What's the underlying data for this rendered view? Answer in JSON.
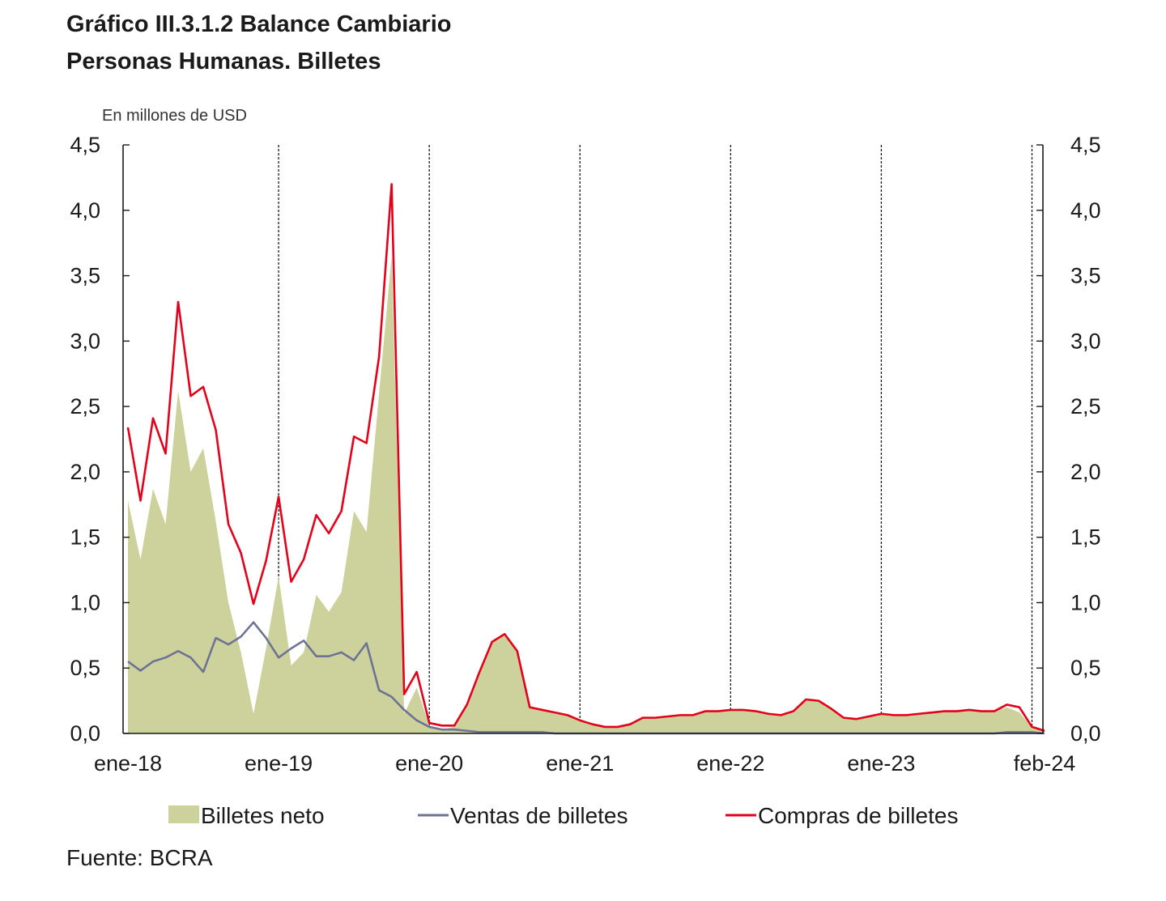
{
  "title_line1": "Gráfico III.3.1.2 Balance Cambiario",
  "title_line2": "Personas Humanas. Billetes",
  "source": "Fuente: BCRA",
  "colors": {
    "neto": "#cdd29c",
    "ventas": "#6e7394",
    "compras": "#e3001b",
    "grid": "#1a1a1a"
  },
  "chart_data": {
    "type": "area",
    "unit_label": "En millones de USD",
    "ylim": [
      0,
      4.5
    ],
    "y_ticks": [
      "0,0",
      "0,5",
      "1,0",
      "1,5",
      "2,0",
      "2,5",
      "3,0",
      "3,5",
      "4,0",
      "4,5"
    ],
    "y_tick_values": [
      0,
      0.5,
      1,
      1.5,
      2,
      2.5,
      3,
      3.5,
      4,
      4.5
    ],
    "x_ticks": [
      {
        "label": "ene-18",
        "index": 0
      },
      {
        "label": "ene-19",
        "index": 12
      },
      {
        "label": "ene-20",
        "index": 24
      },
      {
        "label": "ene-21",
        "index": 36
      },
      {
        "label": "ene-22",
        "index": 48
      },
      {
        "label": "ene-23",
        "index": 60
      },
      {
        "label": "feb-24",
        "index": 73
      }
    ],
    "period_dividers": [
      12,
      24,
      36,
      48,
      60,
      72
    ],
    "x_range": [
      0,
      73
    ],
    "series": [
      {
        "name": "Billetes neto",
        "style": "area",
        "values": [
          1.78,
          1.33,
          1.87,
          1.6,
          2.62,
          2.0,
          2.18,
          1.62,
          1.0,
          0.62,
          0.15,
          0.65,
          1.2,
          0.52,
          0.62,
          1.06,
          0.93,
          1.08,
          1.7,
          1.54,
          2.6,
          3.65,
          0.15,
          0.35,
          0.06,
          0.03,
          0.05,
          0.22,
          0.45,
          0.7,
          0.75,
          0.62,
          0.2,
          0.18,
          0.16,
          0.14,
          0.1,
          0.07,
          0.05,
          0.05,
          0.07,
          0.12,
          0.12,
          0.13,
          0.14,
          0.14,
          0.17,
          0.17,
          0.18,
          0.18,
          0.17,
          0.15,
          0.14,
          0.17,
          0.26,
          0.25,
          0.19,
          0.12,
          0.11,
          0.13,
          0.15,
          0.14,
          0.14,
          0.15,
          0.16,
          0.17,
          0.17,
          0.18,
          0.17,
          0.17,
          0.2,
          0.16,
          0.05,
          0.01
        ]
      },
      {
        "name": "Ventas de billetes",
        "style": "line",
        "values": [
          0.55,
          0.48,
          0.55,
          0.58,
          0.63,
          0.58,
          0.47,
          0.73,
          0.68,
          0.74,
          0.85,
          0.73,
          0.58,
          0.65,
          0.71,
          0.59,
          0.59,
          0.62,
          0.56,
          0.69,
          0.33,
          0.28,
          0.18,
          0.1,
          0.05,
          0.03,
          0.03,
          0.02,
          0.01,
          0.01,
          0.01,
          0.01,
          0.01,
          0.01,
          0.0,
          0.0,
          0.0,
          0.0,
          0.0,
          0.0,
          0.0,
          0.0,
          0.0,
          0.0,
          0.0,
          0.0,
          0.0,
          0.0,
          0.0,
          0.0,
          0.0,
          0.0,
          0.0,
          0.0,
          0.0,
          0.0,
          0.0,
          0.0,
          0.0,
          0.0,
          0.0,
          0.0,
          0.0,
          0.0,
          0.0,
          0.0,
          0.0,
          0.0,
          0.0,
          0.0,
          0.01,
          0.01,
          0.01,
          0.0
        ]
      },
      {
        "name": "Compras de billetes",
        "style": "line",
        "values": [
          2.34,
          1.78,
          2.41,
          2.14,
          3.3,
          2.58,
          2.65,
          2.32,
          1.6,
          1.38,
          0.99,
          1.32,
          1.81,
          1.16,
          1.33,
          1.67,
          1.53,
          1.7,
          2.27,
          2.22,
          2.88,
          4.2,
          0.3,
          0.47,
          0.08,
          0.06,
          0.06,
          0.22,
          0.47,
          0.7,
          0.76,
          0.63,
          0.2,
          0.18,
          0.16,
          0.14,
          0.1,
          0.07,
          0.05,
          0.05,
          0.07,
          0.12,
          0.12,
          0.13,
          0.14,
          0.14,
          0.17,
          0.17,
          0.18,
          0.18,
          0.17,
          0.15,
          0.14,
          0.17,
          0.26,
          0.25,
          0.19,
          0.12,
          0.11,
          0.13,
          0.15,
          0.14,
          0.14,
          0.15,
          0.16,
          0.17,
          0.17,
          0.18,
          0.17,
          0.17,
          0.22,
          0.2,
          0.05,
          0.02
        ]
      }
    ]
  }
}
